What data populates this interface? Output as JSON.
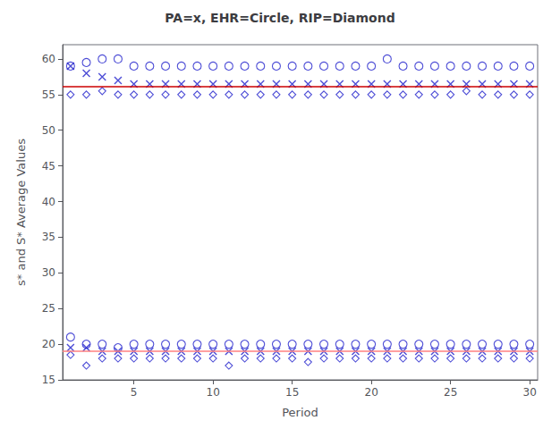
{
  "chart_data": {
    "type": "scatter",
    "title": "PA=x, EHR=Circle, RIP=Diamond",
    "xlabel": "Period",
    "ylabel": "s* and S* Average Values",
    "xlim": [
      0.5,
      30.5
    ],
    "ylim": [
      15,
      62
    ],
    "xticks": [
      5,
      10,
      15,
      20,
      25,
      30
    ],
    "yticks": [
      15,
      20,
      25,
      30,
      35,
      40,
      45,
      50,
      55,
      60
    ],
    "grid": false,
    "x": [
      1,
      2,
      3,
      4,
      5,
      6,
      7,
      8,
      9,
      10,
      11,
      12,
      13,
      14,
      15,
      16,
      17,
      18,
      19,
      20,
      21,
      22,
      23,
      24,
      25,
      26,
      27,
      28,
      29,
      30
    ],
    "series": [
      {
        "marker": "circle",
        "color": "#2020cc",
        "values": [
          59.0,
          59.5,
          60.0,
          60.0,
          59.0,
          59.0,
          59.0,
          59.0,
          59.0,
          59.0,
          59.0,
          59.0,
          59.0,
          59.0,
          59.0,
          59.0,
          59.0,
          59.0,
          59.0,
          59.0,
          60.0,
          59.0,
          59.0,
          59.0,
          59.0,
          59.0,
          59.0,
          59.0,
          59.0,
          59.0
        ]
      },
      {
        "marker": "x",
        "color": "#2020cc",
        "values": [
          59.0,
          58.0,
          57.5,
          57.0,
          56.5,
          56.5,
          56.5,
          56.5,
          56.5,
          56.5,
          56.5,
          56.5,
          56.5,
          56.5,
          56.5,
          56.5,
          56.5,
          56.5,
          56.5,
          56.5,
          56.5,
          56.5,
          56.5,
          56.5,
          56.5,
          56.5,
          56.5,
          56.5,
          56.5,
          56.5
        ]
      },
      {
        "marker": "diamond",
        "color": "#2020cc",
        "values": [
          55.0,
          55.0,
          55.5,
          55.0,
          55.0,
          55.0,
          55.0,
          55.0,
          55.0,
          55.0,
          55.0,
          55.0,
          55.0,
          55.0,
          55.0,
          55.0,
          55.0,
          55.0,
          55.0,
          55.0,
          55.0,
          55.0,
          55.0,
          55.0,
          55.0,
          55.5,
          55.0,
          55.0,
          55.0,
          55.0
        ]
      },
      {
        "marker": "circle",
        "color": "#2020cc",
        "values": [
          21.0,
          20.0,
          20.0,
          19.5,
          20.0,
          20.0,
          20.0,
          20.0,
          20.0,
          20.0,
          20.0,
          20.0,
          20.0,
          20.0,
          20.0,
          20.0,
          20.0,
          20.0,
          20.0,
          20.0,
          20.0,
          20.0,
          20.0,
          20.0,
          20.0,
          20.0,
          20.0,
          20.0,
          20.0,
          20.0
        ]
      },
      {
        "marker": "x",
        "color": "#2020cc",
        "values": [
          19.5,
          19.5,
          19.0,
          19.0,
          19.0,
          19.0,
          19.0,
          19.0,
          19.0,
          19.0,
          19.0,
          19.0,
          19.0,
          19.0,
          19.0,
          19.0,
          19.0,
          19.0,
          19.0,
          19.0,
          19.0,
          19.0,
          19.0,
          19.0,
          19.0,
          19.0,
          19.0,
          19.0,
          19.0,
          19.0
        ]
      },
      {
        "marker": "diamond",
        "color": "#2020cc",
        "values": [
          18.5,
          17.0,
          18.0,
          18.0,
          18.0,
          18.0,
          18.0,
          18.0,
          18.0,
          18.0,
          17.0,
          18.0,
          18.0,
          18.0,
          18.0,
          17.5,
          18.0,
          18.0,
          18.0,
          18.0,
          18.0,
          18.0,
          18.0,
          18.0,
          18.0,
          18.0,
          18.0,
          18.0,
          18.0,
          18.0
        ]
      }
    ],
    "hlines": [
      {
        "value": 56.1,
        "color": "#cc0000"
      },
      {
        "value": 19.0,
        "color": "#ff8080"
      }
    ]
  }
}
